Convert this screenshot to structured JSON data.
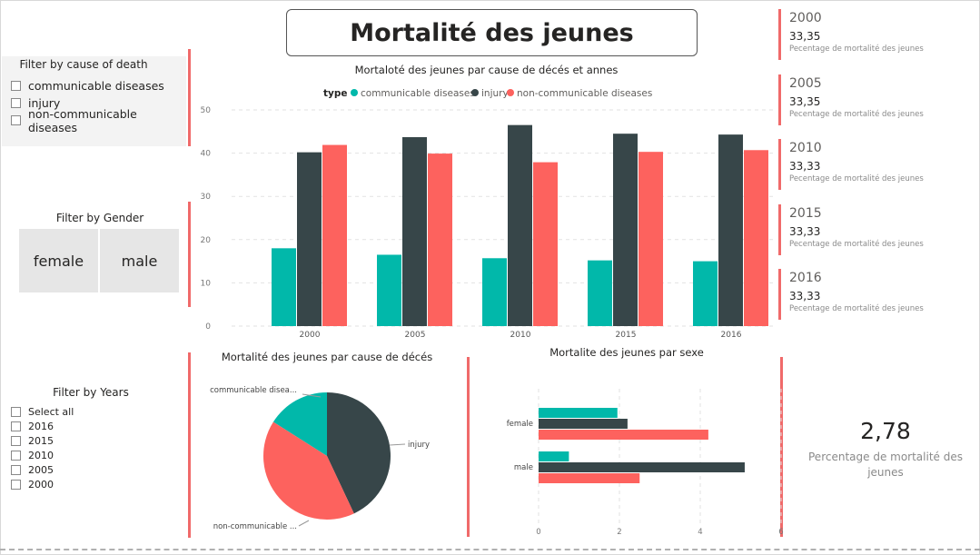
{
  "title": "Mortalité des jeunes",
  "cause_filter": {
    "title": "Filter by cause of death",
    "items": [
      "communicable diseases",
      "injury",
      "non-communicable diseases"
    ]
  },
  "gender_filter": {
    "title": "Filter by Gender",
    "items": [
      "female",
      "male"
    ]
  },
  "year_filter": {
    "title": "Filter by Years",
    "items": [
      "Select all",
      "2016",
      "2015",
      "2010",
      "2005",
      "2000"
    ]
  },
  "year_cards": [
    {
      "year": "2000",
      "value": "33,35",
      "label": "Pecentage de mortalité des jeunes"
    },
    {
      "year": "2005",
      "value": "33,35",
      "label": "Pecentage de mortalité des jeunes"
    },
    {
      "year": "2010",
      "value": "33,33",
      "label": "Pecentage de mortalité des jeunes"
    },
    {
      "year": "2015",
      "value": "33,33",
      "label": "Pecentage de mortalité des jeunes"
    },
    {
      "year": "2016",
      "value": "33,33",
      "label": "Pecentage de mortalité des jeunes"
    }
  ],
  "kpi": {
    "value": "2,78",
    "label": "Percentage de mortalité des jeunes"
  },
  "colors": {
    "communicable": "#01b8aa",
    "injury": "#374649",
    "non_communicable": "#fd625e",
    "accent": "#f06a6a"
  },
  "chart_data": [
    {
      "type": "bar",
      "title": "Mortaloté des jeunes par cause de décés et annes",
      "legend_title": "type",
      "legend_position": "top",
      "categories": [
        "2000",
        "2005",
        "2010",
        "2015",
        "2016"
      ],
      "series": [
        {
          "name": "communicable diseases",
          "values": [
            18,
            16.5,
            15.7,
            15.2,
            15
          ]
        },
        {
          "name": "injury",
          "values": [
            40.2,
            43.7,
            46.5,
            44.5,
            44.3
          ]
        },
        {
          "name": "non-communicable diseases",
          "values": [
            41.9,
            39.9,
            37.9,
            40.3,
            40.7
          ]
        }
      ],
      "yticks": [
        "0",
        "10",
        "20",
        "30",
        "40",
        "50"
      ],
      "ylim": [
        0,
        50
      ],
      "grid": true
    },
    {
      "type": "pie",
      "title": "Mortalité des jeunes par cause de décés",
      "labels": [
        "communicable disea...",
        "injury",
        "non-communicable ..."
      ],
      "values": [
        16,
        43,
        41
      ]
    },
    {
      "type": "bar",
      "orientation": "horizontal",
      "title": "Mortalite des jeunes par sexe",
      "categories": [
        "female",
        "male"
      ],
      "series": [
        {
          "name": "communicable diseases",
          "values": [
            1.95,
            0.75
          ]
        },
        {
          "name": "injury",
          "values": [
            2.2,
            5.1
          ]
        },
        {
          "name": "non-communicable diseases",
          "values": [
            4.2,
            2.5
          ]
        }
      ],
      "xticks": [
        "0",
        "2",
        "4",
        "6"
      ],
      "xlim": [
        0,
        6
      ],
      "grid": true
    }
  ]
}
